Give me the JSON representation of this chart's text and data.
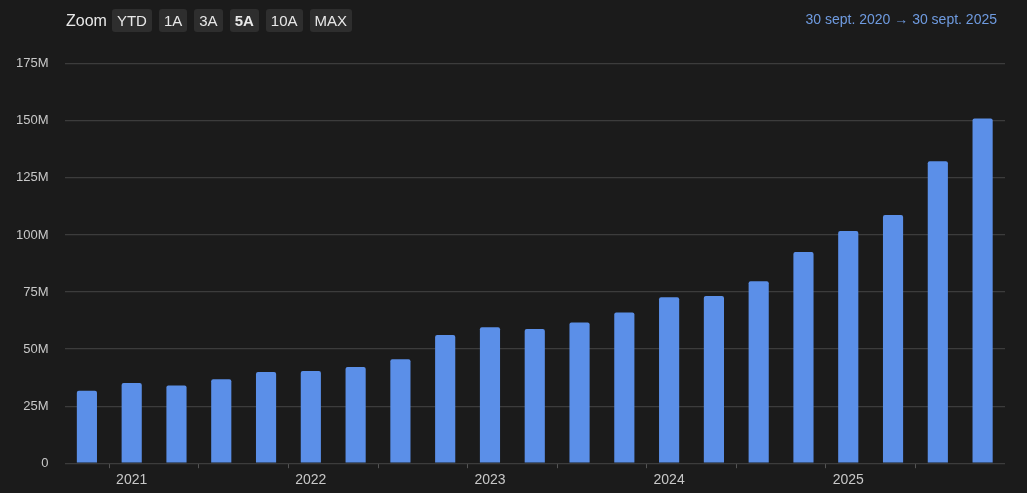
{
  "chart_data": {
    "type": "bar",
    "subtitle": "30 sept. 2020 → 30 sept. 2025",
    "annotations": [
      "Zoom",
      "YTD",
      "1A",
      "3A",
      "5A",
      "10A",
      "MAX"
    ],
    "categories": [
      null,
      "2021",
      null,
      null,
      null,
      "2022",
      null,
      null,
      null,
      "2023",
      null,
      null,
      null,
      "2024",
      null,
      null,
      null,
      "2025",
      null,
      null,
      null
    ],
    "values": [
      31.7,
      35.1,
      34.0,
      36.8,
      40.0,
      40.4,
      42.2,
      45.5,
      56.2,
      59.6,
      58.8,
      61.6,
      66.0,
      72.7,
      73.3,
      79.7,
      92.5,
      101.7,
      108.7,
      132.3,
      151
    ],
    "color": "#5b8fe8",
    "ylim": [
      0,
      175
    ],
    "yticks": [
      0,
      {
        "value": 25,
        "label": "25M"
      },
      {
        "value": 50,
        "label": "50M"
      },
      {
        "value": 75,
        "label": "75M"
      },
      {
        "value": 100,
        "label": "100M"
      },
      {
        "value": 125,
        "label": "125M"
      },
      {
        "value": 150,
        "label": "150M"
      },
      {
        "value": 175,
        "label": "175M"
      }
    ],
    "grid": "y",
    "legend": false
  }
}
